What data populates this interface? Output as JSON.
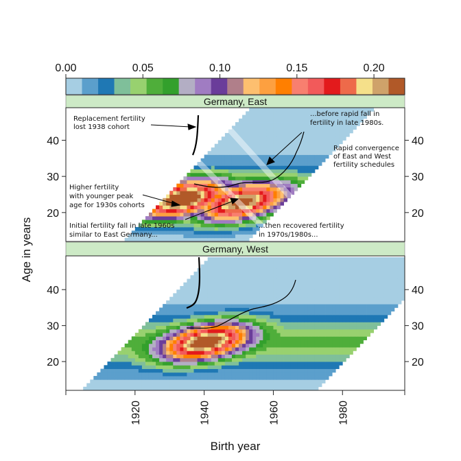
{
  "chart_data": {
    "type": "heatmap",
    "xlabel": "Birth  year",
    "ylabel": "Age in years",
    "xlim": [
      1900,
      1998
    ],
    "ylim": [
      12,
      49
    ],
    "x_ticks": [
      1920,
      1940,
      1960,
      1980
    ],
    "y_ticks": [
      20,
      30,
      40
    ],
    "colorbar": {
      "range": [
        0,
        0.22
      ],
      "ticks": [
        "0.00",
        "0.05",
        "0.10",
        "0.15",
        "0.20"
      ],
      "tick_values": [
        0,
        0.05,
        0.1,
        0.15,
        0.2
      ],
      "colors": [
        "#a6cee3",
        "#5b9fcc",
        "#1f78b4",
        "#7fbf9a",
        "#98d16f",
        "#4fae3a",
        "#33a02c",
        "#b3aec4",
        "#a07cc2",
        "#6a3d9a",
        "#b07f8a",
        "#fdbf6f",
        "#fda040",
        "#ff7f00",
        "#f87f6f",
        "#f25a5a",
        "#e31a1c",
        "#ee6a4a",
        "#f5e08a",
        "#cfa26a",
        "#b15928"
      ]
    },
    "panels": [
      {
        "strip": "Germany, East",
        "cohort_range": [
          1932,
          1967
        ],
        "peak_cells": [
          {
            "birth_year": 1937,
            "age": 23,
            "asfr": 0.19
          },
          {
            "birth_year": 1955,
            "age": 22,
            "asfr": 0.18
          }
        ]
      },
      {
        "strip": "Germany, West",
        "cohort_range": [
          1920,
          1987
        ],
        "peak_cells": [
          {
            "birth_year": 1942,
            "age": 25,
            "asfr": 0.18
          }
        ]
      }
    ],
    "annotations": [
      [
        "Replacement fertility",
        "lost 1938 cohort"
      ],
      [
        "...before rapid fall in",
        "fertility in late 1980s."
      ],
      [
        "Rapid convergence",
        "of East and West",
        "fertility schedules"
      ],
      [
        "Higher fertility",
        "with younger peak",
        "age  for 1930s cohorts"
      ],
      [
        "Initial fertility fall in late 1960s",
        "similar to East Germany..."
      ],
      [
        "...then recovered fertility",
        "in 1970s/1980s..."
      ]
    ]
  }
}
